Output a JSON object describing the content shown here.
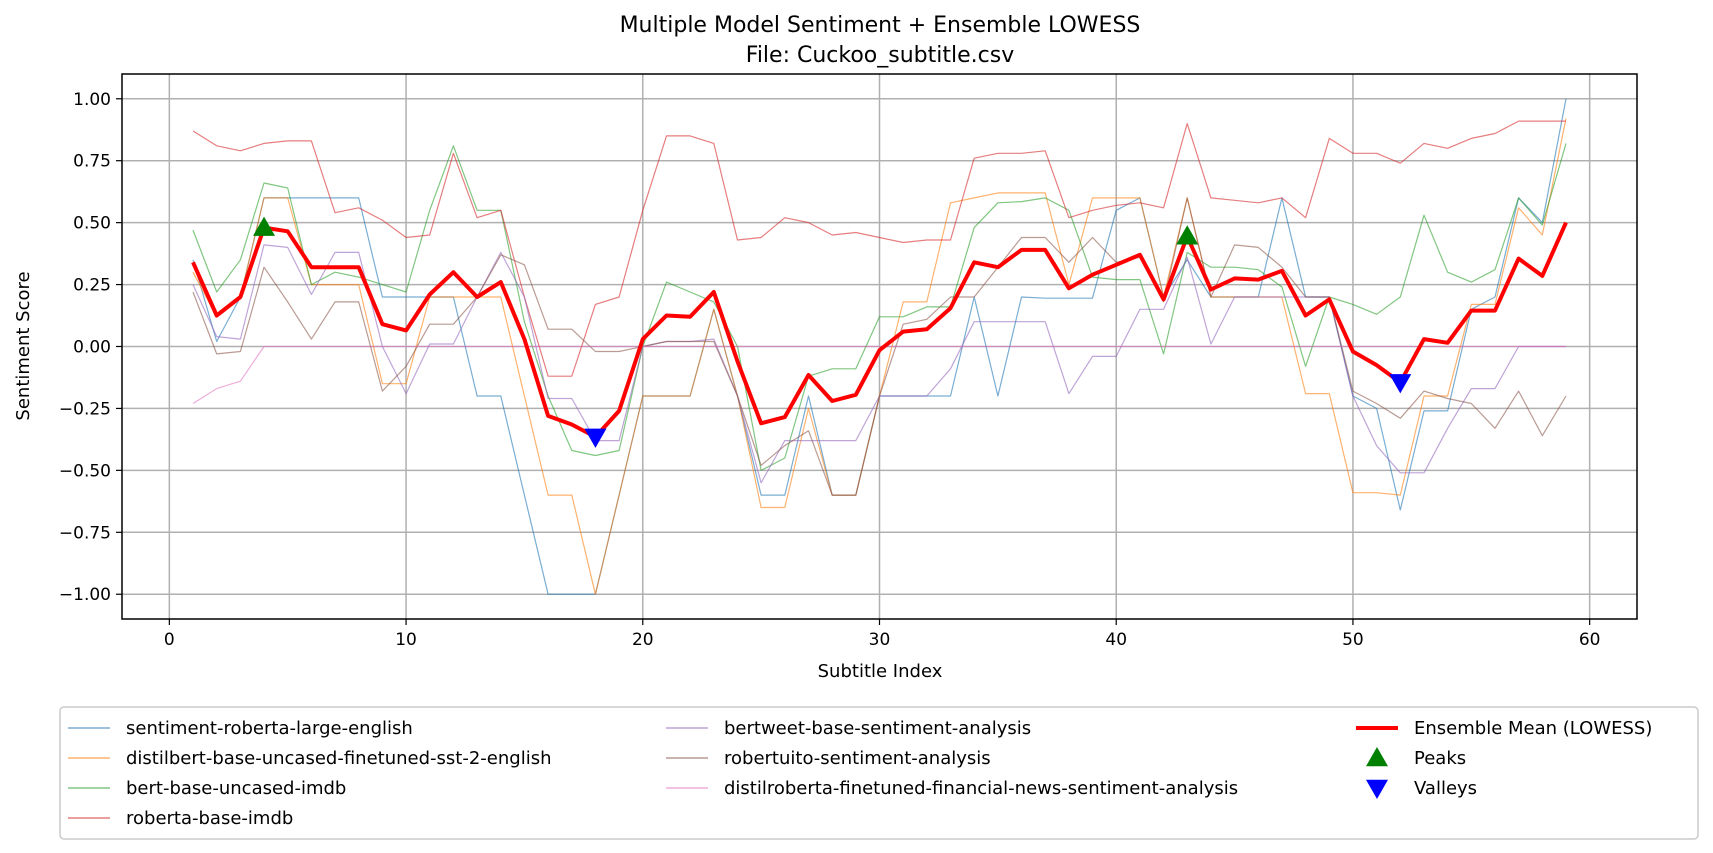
{
  "chart_data": {
    "type": "line",
    "title": "Multiple Model Sentiment + Ensemble LOWESS",
    "subtitle": "File: Cuckoo_subtitle.csv",
    "xlabel": "Subtitle Index",
    "ylabel": "Sentiment Score",
    "xlim": [
      -2,
      62
    ],
    "ylim": [
      -1.1,
      1.1
    ],
    "xticks": [
      0,
      10,
      20,
      30,
      40,
      50,
      60
    ],
    "yticks": [
      1.0,
      0.75,
      0.5,
      0.25,
      0.0,
      -0.25,
      -0.5,
      -0.75,
      -1.0
    ],
    "xtick_labels": [
      "0",
      "10",
      "20",
      "30",
      "40",
      "50",
      "60"
    ],
    "ytick_labels": [
      "1.00",
      "0.75",
      "0.50",
      "0.25",
      "0.00",
      "−0.25",
      "−0.50",
      "−0.75",
      "−1.00"
    ],
    "grid": true,
    "legend_position": "bottom",
    "x": [
      1,
      2,
      3,
      4,
      5,
      6,
      7,
      8,
      9,
      10,
      11,
      12,
      13,
      14,
      15,
      16,
      17,
      18,
      19,
      20,
      21,
      22,
      23,
      24,
      25,
      26,
      27,
      28,
      29,
      30,
      31,
      32,
      33,
      34,
      35,
      36,
      37,
      38,
      39,
      40,
      41,
      42,
      43,
      44,
      45,
      46,
      47,
      48,
      49,
      50,
      51,
      52,
      53,
      54,
      55,
      56,
      57,
      58,
      59
    ],
    "series": [
      {
        "name": "sentiment-roberta-large-english",
        "color": "#1f77b4",
        "values": [
          0.35,
          0.02,
          0.2,
          0.6,
          0.6,
          0.6,
          0.6,
          0.6,
          0.2,
          0.2,
          0.2,
          0.2,
          -0.2,
          -0.2,
          -0.6,
          -1.0,
          -1.0,
          -1.0,
          -0.6,
          -0.2,
          -0.2,
          -0.2,
          0.15,
          -0.2,
          -0.6,
          -0.6,
          -0.2,
          -0.6,
          -0.6,
          -0.2,
          -0.2,
          -0.2,
          -0.2,
          0.2,
          -0.2,
          0.2,
          0.195,
          0.195,
          0.195,
          0.55,
          0.6,
          0.2,
          0.35,
          0.2,
          0.2,
          0.2,
          0.6,
          0.2,
          0.2,
          -0.2,
          -0.25,
          -0.66,
          -0.26,
          -0.26,
          0.15,
          0.2,
          0.6,
          0.5,
          1.0
        ]
      },
      {
        "name": "distilbert-base-uncased-finetuned-sst-2-english",
        "color": "#ff7f0e",
        "values": [
          0.3,
          0.12,
          0.2,
          0.6,
          0.6,
          0.25,
          0.25,
          0.25,
          -0.15,
          -0.15,
          0.2,
          0.2,
          0.2,
          0.2,
          -0.2,
          -0.6,
          -0.6,
          -1.0,
          -0.6,
          -0.2,
          -0.2,
          -0.2,
          0.15,
          -0.2,
          -0.65,
          -0.65,
          -0.25,
          -0.6,
          -0.6,
          -0.2,
          0.18,
          0.18,
          0.58,
          0.6,
          0.62,
          0.62,
          0.62,
          0.25,
          0.6,
          0.6,
          0.6,
          0.2,
          0.6,
          0.2,
          0.2,
          0.2,
          0.2,
          -0.19,
          -0.19,
          -0.59,
          -0.59,
          -0.6,
          -0.2,
          -0.2,
          0.17,
          0.17,
          0.56,
          0.45,
          0.92
        ]
      },
      {
        "name": "bert-base-uncased-imdb",
        "color": "#2ca02c",
        "values": [
          0.47,
          0.22,
          0.35,
          0.66,
          0.64,
          0.25,
          0.3,
          0.28,
          0.25,
          0.22,
          0.55,
          0.81,
          0.55,
          0.55,
          0.1,
          -0.2,
          -0.42,
          -0.44,
          -0.42,
          0.0,
          0.26,
          0.22,
          0.18,
          0.0,
          -0.5,
          -0.45,
          -0.12,
          -0.09,
          -0.09,
          0.12,
          0.12,
          0.16,
          0.16,
          0.48,
          0.58,
          0.585,
          0.6,
          0.55,
          0.28,
          0.27,
          0.27,
          -0.03,
          0.38,
          0.32,
          0.32,
          0.31,
          0.24,
          -0.08,
          0.2,
          0.17,
          0.13,
          0.2,
          0.53,
          0.3,
          0.26,
          0.31,
          0.6,
          0.49,
          0.82
        ]
      },
      {
        "name": "roberta-base-imdb",
        "color": "#d62728",
        "values": [
          0.87,
          0.81,
          0.79,
          0.82,
          0.83,
          0.83,
          0.54,
          0.56,
          0.51,
          0.44,
          0.45,
          0.78,
          0.52,
          0.55,
          0.2,
          -0.12,
          -0.12,
          0.17,
          0.2,
          0.55,
          0.85,
          0.85,
          0.82,
          0.43,
          0.44,
          0.52,
          0.5,
          0.45,
          0.46,
          0.44,
          0.42,
          0.43,
          0.43,
          0.76,
          0.78,
          0.78,
          0.79,
          0.52,
          0.55,
          0.57,
          0.58,
          0.56,
          0.9,
          0.6,
          0.59,
          0.58,
          0.6,
          0.52,
          0.84,
          0.78,
          0.78,
          0.74,
          0.82,
          0.8,
          0.84,
          0.86,
          0.91,
          0.91,
          0.91
        ]
      },
      {
        "name": "bertweet-base-sentiment-analysis",
        "color": "#9467bd",
        "values": [
          0.25,
          0.04,
          0.03,
          0.41,
          0.4,
          0.21,
          0.38,
          0.38,
          0.0,
          -0.19,
          0.01,
          0.01,
          0.2,
          0.38,
          0.2,
          -0.21,
          -0.21,
          -0.38,
          -0.38,
          0.0,
          0.02,
          0.02,
          0.03,
          -0.2,
          -0.55,
          -0.38,
          -0.38,
          -0.38,
          -0.38,
          -0.2,
          -0.2,
          -0.2,
          -0.09,
          0.1,
          0.1,
          0.1,
          0.1,
          -0.19,
          -0.04,
          -0.04,
          0.15,
          0.15,
          0.36,
          0.01,
          0.2,
          0.2,
          0.2,
          0.2,
          0.2,
          -0.2,
          -0.4,
          -0.51,
          -0.51,
          -0.33,
          -0.17,
          -0.17,
          0.0,
          0.0,
          0.0
        ]
      },
      {
        "name": "robertuito-sentiment-analysis",
        "color": "#8c564b",
        "values": [
          0.22,
          -0.03,
          -0.02,
          0.32,
          0.18,
          0.03,
          0.18,
          0.18,
          -0.18,
          -0.08,
          0.09,
          0.09,
          0.2,
          0.37,
          0.33,
          0.07,
          0.07,
          -0.02,
          -0.02,
          0.0,
          0.02,
          0.02,
          0.02,
          -0.2,
          -0.48,
          -0.4,
          -0.34,
          -0.6,
          -0.6,
          -0.2,
          0.09,
          0.11,
          0.2,
          0.2,
          0.32,
          0.44,
          0.44,
          0.34,
          0.44,
          0.34,
          0.36,
          0.18,
          0.6,
          0.2,
          0.41,
          0.4,
          0.32,
          0.2,
          0.2,
          -0.18,
          -0.23,
          -0.29,
          -0.18,
          -0.21,
          -0.23,
          -0.33,
          -0.18,
          -0.36,
          -0.2
        ]
      },
      {
        "name": "distilroberta-finetuned-financial-news-sentiment-analysis",
        "color": "#e377c2",
        "values": [
          -0.23,
          -0.17,
          -0.14,
          0,
          0,
          0,
          0,
          0,
          0,
          0,
          0,
          0,
          0,
          0,
          0,
          0,
          0,
          0,
          0,
          0,
          0,
          0,
          0,
          0,
          0,
          0,
          0,
          0,
          0,
          0,
          0,
          0,
          0,
          0,
          0,
          0,
          0,
          0,
          0,
          0,
          0,
          0,
          0,
          0,
          0,
          0,
          0,
          0,
          0,
          0,
          0,
          0,
          0,
          0,
          0,
          0,
          0,
          0,
          0
        ]
      },
      {
        "name": "Ensemble Mean (LOWESS)",
        "color": "#ff0000",
        "values": [
          0.34,
          0.125,
          0.2,
          0.48,
          0.465,
          0.32,
          0.32,
          0.32,
          0.09,
          0.065,
          0.21,
          0.3,
          0.2,
          0.26,
          0.03,
          -0.28,
          -0.315,
          -0.365,
          -0.26,
          0.03,
          0.125,
          0.12,
          0.22,
          -0.06,
          -0.31,
          -0.285,
          -0.115,
          -0.22,
          -0.195,
          -0.015,
          0.06,
          0.07,
          0.155,
          0.34,
          0.32,
          0.39,
          0.39,
          0.235,
          0.29,
          0.33,
          0.37,
          0.19,
          0.445,
          0.23,
          0.275,
          0.27,
          0.305,
          0.125,
          0.19,
          -0.02,
          -0.075,
          -0.145,
          0.03,
          0.015,
          0.145,
          0.145,
          0.355,
          0.285,
          0.5
        ]
      }
    ],
    "peaks": {
      "name": "Peaks",
      "color": "#008000",
      "x": [
        4,
        43
      ],
      "y": [
        0.48,
        0.445
      ]
    },
    "valleys": {
      "name": "Valleys",
      "color": "#0000ff",
      "x": [
        18,
        52
      ],
      "y": [
        -0.365,
        -0.145
      ]
    }
  }
}
